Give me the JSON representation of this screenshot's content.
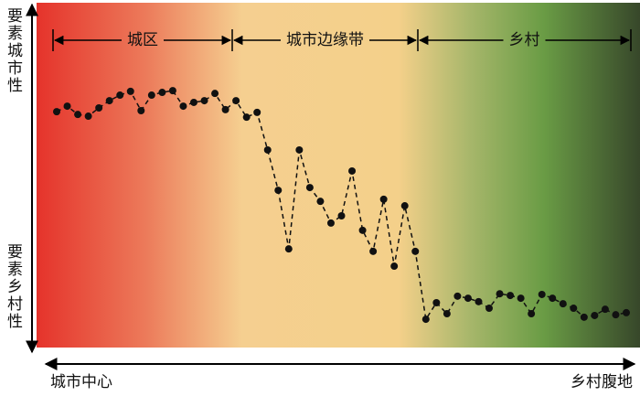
{
  "chart_data": {
    "type": "line",
    "y_top_label": "要素城市性",
    "y_bottom_label": "要素乡村性",
    "x_left_label": "城市中心",
    "x_right_label": "乡村腹地",
    "zones": [
      "城区",
      "城市边缘带",
      "乡村"
    ],
    "ylim": [
      0,
      100
    ],
    "color": "#111111",
    "values": [
      68.4,
      70.0,
      67.6,
      67.1,
      69.5,
      71.6,
      73.2,
      74.3,
      68.7,
      73.2,
      74.0,
      74.5,
      70.0,
      71.1,
      71.6,
      73.7,
      69.0,
      71.6,
      66.8,
      68.2,
      57.3,
      45.6,
      28.6,
      57.3,
      46.4,
      42.4,
      36.1,
      38.2,
      51.2,
      34.0,
      27.9,
      43.0,
      23.6,
      41.1,
      27.9,
      8.2,
      13.0,
      9.8,
      14.9,
      14.3,
      13.3,
      11.4,
      15.6,
      15.1,
      14.3,
      9.8,
      15.4,
      14.3,
      12.7,
      11.4,
      8.8,
      9.3,
      11.1,
      9.5,
      10.1
    ]
  }
}
